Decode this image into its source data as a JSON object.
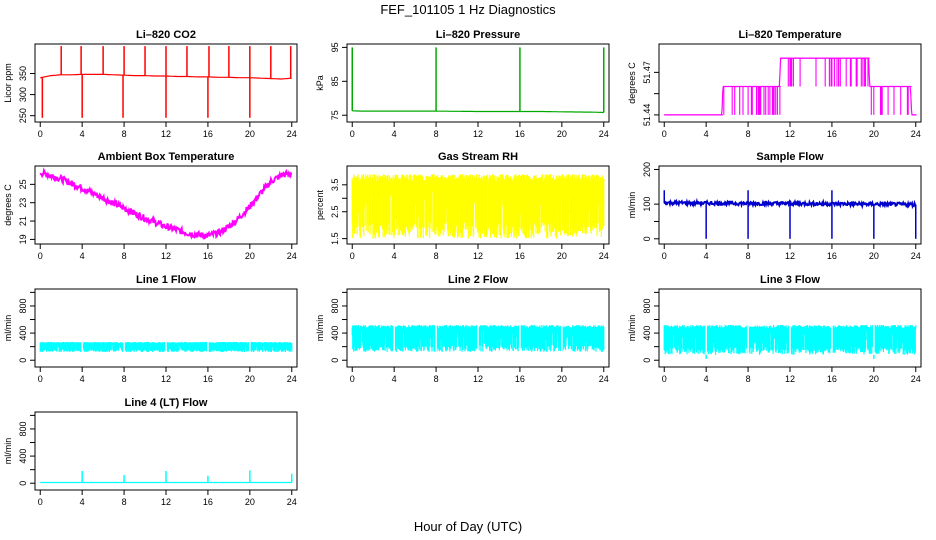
{
  "figure": {
    "title": "FEF_101105  1 Hz Diagnostics",
    "xlabel": "Hour of Day (UTC)"
  },
  "chart_data": [
    {
      "type": "line",
      "title": "Li–820 CO2",
      "ylabel": "Licor ppm",
      "color": "#ff0000",
      "xlim": [
        -0.5,
        24.5
      ],
      "ylim": [
        235,
        420
      ],
      "yticks": [
        250,
        300,
        350
      ],
      "xticks": [
        0,
        4,
        8,
        12,
        16,
        20,
        24
      ],
      "series": [
        {
          "x": [
            0,
            1,
            2,
            3,
            4,
            5,
            6,
            7,
            8,
            9,
            10,
            11,
            12,
            13,
            14,
            15,
            16,
            17,
            18,
            19,
            20,
            21,
            22,
            23,
            24
          ],
          "values": [
            340,
            345,
            347,
            347,
            348,
            348,
            348,
            347,
            346,
            345,
            345,
            344,
            344,
            343,
            343,
            342,
            342,
            341,
            341,
            340,
            340,
            339,
            338,
            337,
            339
          ]
        }
      ],
      "spikes_up_x": [
        2,
        3.9,
        6,
        8,
        10,
        12,
        14,
        16.1,
        18,
        20,
        22,
        23.9
      ],
      "spike_top": 415,
      "dips_x": [
        0.2,
        4,
        7.9,
        12,
        16,
        20
      ],
      "dip_bottom": 245
    },
    {
      "type": "line",
      "title": "Li–820 Pressure",
      "ylabel": "kPa",
      "color": "#00aa00",
      "xlim": [
        -0.5,
        24.5
      ],
      "ylim": [
        73,
        96
      ],
      "yticks": [
        75,
        85,
        95
      ],
      "xticks": [
        0,
        4,
        8,
        12,
        16,
        20,
        24
      ],
      "series": [
        {
          "x": [
            0,
            1,
            4,
            8,
            12,
            16,
            18,
            20,
            23,
            24
          ],
          "values": [
            76.3,
            76.2,
            76.2,
            76.2,
            76.1,
            76.1,
            76.1,
            76.0,
            75.9,
            75.8
          ]
        }
      ],
      "spikes_up_x": [
        0,
        8,
        16,
        24
      ],
      "spike_top": 95
    },
    {
      "type": "line",
      "title": "Li–820 Temperature",
      "ylabel": "degrees C",
      "color": "#ff00ff",
      "xlim": [
        -0.5,
        24.5
      ],
      "ylim": [
        51.435,
        51.49
      ],
      "yticks": [
        51.44,
        51.47
      ],
      "ytick_labels": [
        "51.44",
        "51.47"
      ],
      "extra_ytick": 51.455,
      "xticks": [
        0,
        4,
        8,
        12,
        16,
        20,
        24
      ],
      "levels": [
        51.44,
        51.46,
        51.48
      ],
      "series": [
        {
          "x": [
            0,
            5.5,
            5.6,
            11,
            11.1,
            19.5,
            19.6,
            23.5,
            23.6,
            24
          ],
          "values": [
            51.44,
            51.44,
            51.46,
            51.46,
            51.48,
            51.48,
            51.46,
            51.46,
            51.44,
            51.44
          ]
        }
      ]
    },
    {
      "type": "line",
      "title": "Ambient Box Temperature",
      "ylabel": "degrees C",
      "color": "#ff00ff",
      "xlim": [
        -0.5,
        24.5
      ],
      "ylim": [
        18.5,
        27
      ],
      "yticks": [
        19,
        21,
        23,
        25
      ],
      "xticks": [
        0,
        4,
        8,
        12,
        16,
        20,
        24
      ],
      "series": [
        {
          "x": [
            0,
            2,
            4,
            6,
            8,
            10,
            12,
            14,
            15,
            16,
            17,
            18,
            19,
            20,
            21,
            22,
            23,
            24
          ],
          "values": [
            26.3,
            25.6,
            24.6,
            23.5,
            22.4,
            21.3,
            20.4,
            19.7,
            19.5,
            19.4,
            19.7,
            20.4,
            21.4,
            22.6,
            24.0,
            25.3,
            26.0,
            26.2
          ]
        }
      ],
      "noise": 0.35
    },
    {
      "type": "line",
      "title": "Gas Stream RH",
      "ylabel": "percent",
      "color": "#ffff00",
      "xlim": [
        -0.5,
        24.5
      ],
      "ylim": [
        1.3,
        4.2
      ],
      "yticks": [
        1.5,
        2.5,
        3.5
      ],
      "extra_ytick": 3.0,
      "xticks": [
        0,
        4,
        8,
        12,
        16,
        20,
        24
      ],
      "band_top": 3.9,
      "band_bottom": 1.5
    },
    {
      "type": "line",
      "title": "Sample Flow",
      "ylabel": "ml/min",
      "color": "#0000cc",
      "xlim": [
        -0.5,
        24.5
      ],
      "ylim": [
        -15,
        210
      ],
      "yticks": [
        0,
        100,
        200
      ],
      "extra_ytick": 50,
      "xticks": [
        0,
        4,
        8,
        12,
        16,
        20,
        24
      ],
      "series": [
        {
          "x": [
            0,
            4,
            8,
            12,
            16,
            20,
            24
          ],
          "values": [
            104,
            103,
            102,
            102,
            101,
            100,
            99
          ]
        }
      ],
      "noise": 5,
      "spikes_up_x": [
        0,
        8,
        16
      ],
      "spike_top": 140,
      "dips_x": [
        4,
        8,
        12,
        16,
        20,
        24
      ],
      "dip_bottom": 0
    },
    {
      "type": "line",
      "title": "Line 1 Flow",
      "ylabel": "ml/min",
      "color": "#00ffff",
      "xlim": [
        -0.5,
        24.5
      ],
      "ylim": [
        -100,
        1050
      ],
      "yticks": [
        0,
        400,
        800
      ],
      "minor_yticks": [
        200,
        600,
        1000
      ],
      "xticks": [
        0,
        4,
        8,
        12,
        16,
        20,
        24
      ],
      "band_top": 270,
      "band_bottom": 120,
      "gaps_x": [
        4,
        8,
        12,
        16,
        20
      ]
    },
    {
      "type": "line",
      "title": "Line 2 Flow",
      "ylabel": "ml/min",
      "color": "#00ffff",
      "xlim": [
        -0.5,
        24.5
      ],
      "ylim": [
        -100,
        1050
      ],
      "yticks": [
        0,
        400,
        800
      ],
      "minor_yticks": [
        200,
        600,
        1000
      ],
      "xticks": [
        0,
        4,
        8,
        12,
        16,
        20,
        24
      ],
      "band_top": 520,
      "band_bottom": 120,
      "gaps_x": [
        4,
        8,
        12,
        16,
        20
      ]
    },
    {
      "type": "line",
      "title": "Line 3 Flow",
      "ylabel": "ml/min",
      "color": "#00ffff",
      "xlim": [
        -0.5,
        24.5
      ],
      "ylim": [
        -100,
        1050
      ],
      "yticks": [
        0,
        400,
        800
      ],
      "minor_yticks": [
        200,
        600,
        1000
      ],
      "xticks": [
        0,
        4,
        8,
        12,
        16,
        20,
        24
      ],
      "band_top": 520,
      "band_bottom": 80,
      "gaps_x": [
        4,
        8,
        12,
        16,
        20
      ],
      "dips_x": [
        4,
        20
      ],
      "dip_bottom": 20
    },
    {
      "type": "line",
      "title": "Line 4 (LT) Flow",
      "ylabel": "ml/min",
      "color": "#00ffff",
      "xlim": [
        -0.5,
        24.5
      ],
      "ylim": [
        -100,
        1050
      ],
      "yticks": [
        0,
        400,
        800
      ],
      "minor_yticks": [
        200,
        600,
        1000
      ],
      "xticks": [
        0,
        4,
        8,
        12,
        16,
        20,
        24
      ],
      "series": [
        {
          "x": [
            0,
            24
          ],
          "values": [
            10,
            10
          ]
        }
      ],
      "spikes_up_x": [
        4,
        8,
        12,
        16,
        20,
        24
      ],
      "spike_tops": [
        180,
        120,
        180,
        110,
        190,
        140
      ]
    }
  ]
}
